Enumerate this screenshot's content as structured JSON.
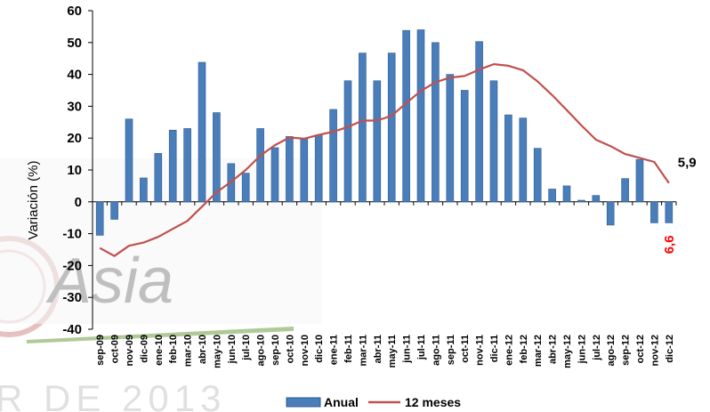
{
  "chart_data": {
    "type": "bar",
    "ylabel": "Variación (%)",
    "ylim": [
      -40,
      60
    ],
    "yticks": [
      -40,
      -30,
      -20,
      -10,
      0,
      10,
      20,
      30,
      40,
      50,
      60
    ],
    "grid": false,
    "legend_position": "bottom",
    "categories": [
      "sep-09",
      "oct-09",
      "nov-09",
      "dic-09",
      "ene-10",
      "feb-10",
      "mar-10",
      "abr-10",
      "may-10",
      "jun-10",
      "jul-10",
      "ago-10",
      "sep-10",
      "oct-10",
      "nov-10",
      "dic-10",
      "ene-11",
      "feb-11",
      "mar-11",
      "abr-11",
      "may-11",
      "jun-11",
      "jul-11",
      "ago-11",
      "sep-11",
      "oct-11",
      "nov-11",
      "dic-11",
      "ene-12",
      "feb-12",
      "mar-12",
      "abr-12",
      "may-12",
      "jun-12",
      "jul-12",
      "ago-12",
      "sep-12",
      "oct-12",
      "nov-12",
      "dic-12"
    ],
    "series": [
      {
        "name": "Anual",
        "kind": "bar",
        "color": "#4a7ebb",
        "values": [
          -10.5,
          -5.5,
          26,
          7.5,
          15.2,
          22.5,
          23,
          43.8,
          28,
          12,
          9,
          23,
          17,
          20.5,
          20,
          21,
          29,
          38,
          46.7,
          38,
          46.7,
          53.8,
          54,
          50,
          40,
          35,
          50.3,
          38,
          27.3,
          26.3,
          16.8,
          4,
          5,
          0.5,
          2,
          -7.3,
          7.3,
          13.3,
          -6.6,
          -6.6
        ]
      },
      {
        "name": "12 meses",
        "kind": "line",
        "color": "#c0504d",
        "values": [
          -14.5,
          -17,
          -13.8,
          -12.8,
          -11,
          -8.5,
          -6,
          -1.5,
          3,
          6.3,
          10,
          14.5,
          17.8,
          20.2,
          19.8,
          21,
          22,
          23.5,
          25.5,
          25.5,
          27,
          31,
          34.8,
          37.5,
          39,
          39.5,
          41.5,
          43.2,
          42.7,
          41.3,
          37.8,
          33.5,
          28.8,
          24,
          19.5,
          17.5,
          15,
          13.8,
          12.5,
          5.9
        ]
      }
    ],
    "annotations": [
      {
        "text": "5,9",
        "color": "#000000"
      },
      {
        "text": "6,6",
        "color": "#ff0000"
      }
    ],
    "watermark": {
      "text1": "Asia",
      "text2": "R DE 2013"
    }
  }
}
